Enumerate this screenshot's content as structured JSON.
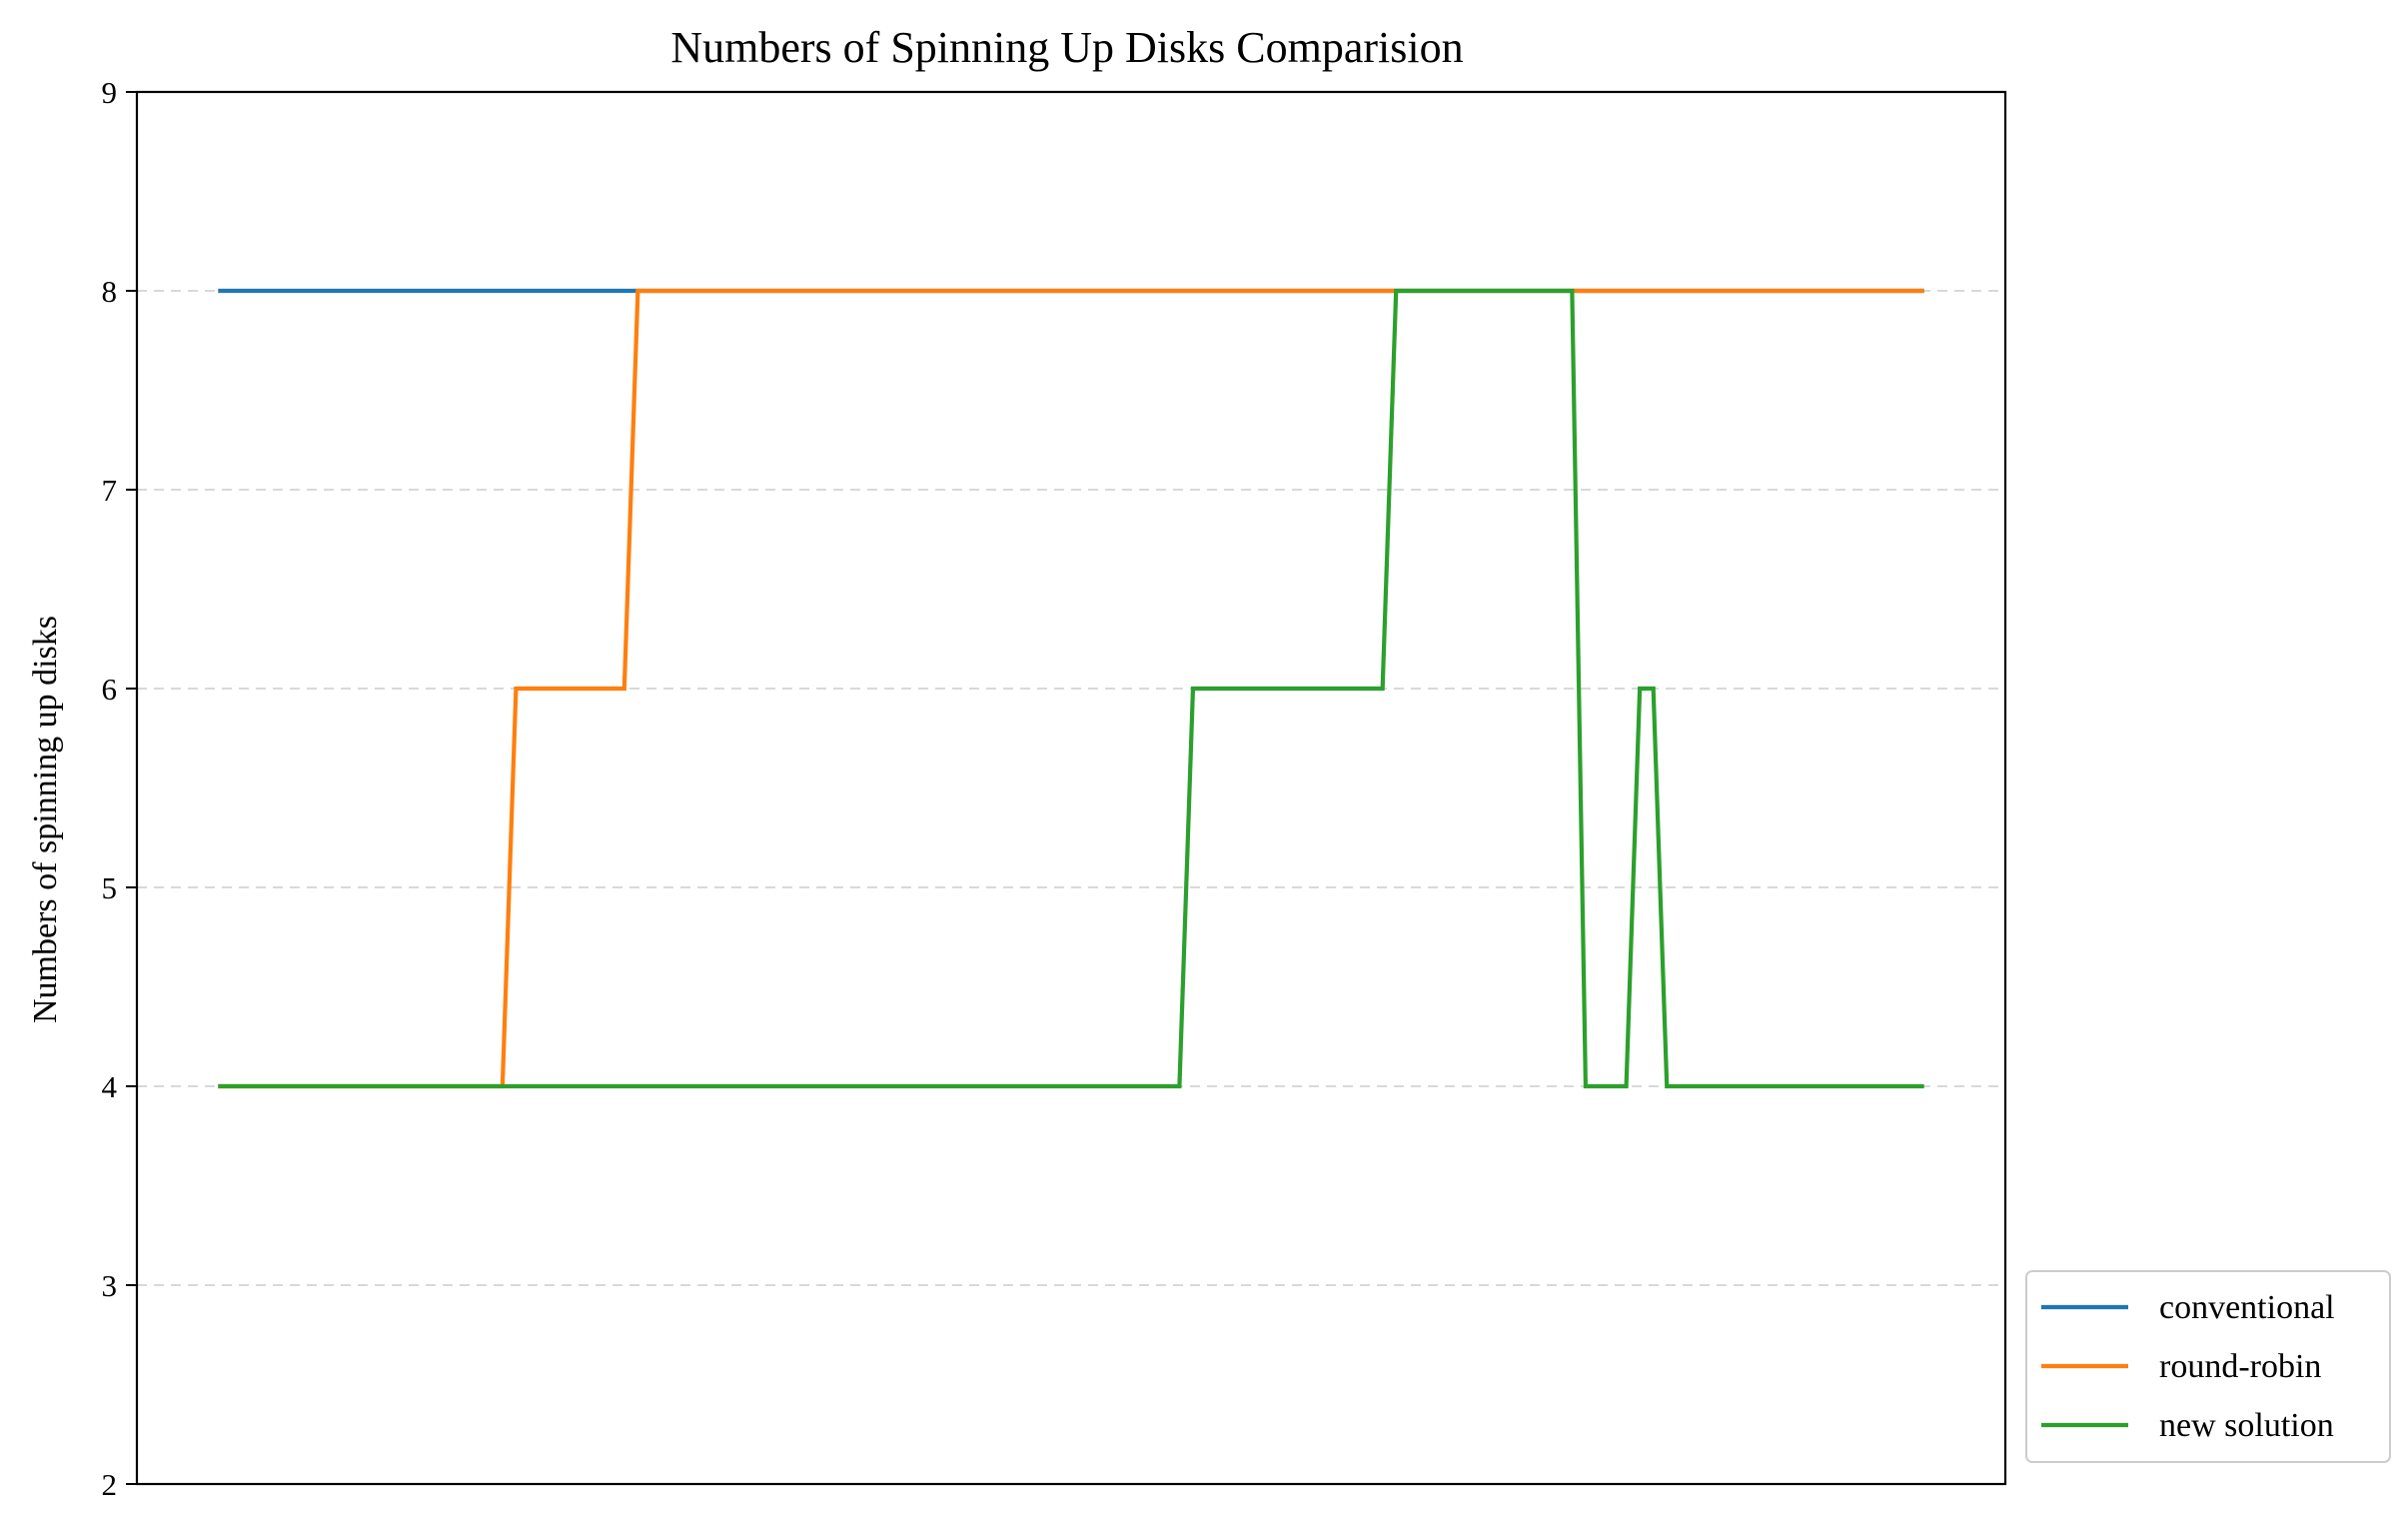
{
  "chart_data": {
    "type": "line",
    "title": "Numbers of Spinning Up Disks Comparision",
    "xlabel": "",
    "ylabel": "Numbers of spinning up disks",
    "xlim": [
      -6,
      132
    ],
    "ylim": [
      2,
      9
    ],
    "yticks": [
      "2",
      "3",
      "4",
      "5",
      "6",
      "7",
      "8",
      "9"
    ],
    "grid": "y-dashed",
    "legend_position": "lower-right-outside",
    "series": [
      {
        "name": "conventional",
        "color": "#1f77b4",
        "x": [
          0,
          126
        ],
        "y": [
          8,
          8
        ]
      },
      {
        "name": "round-robin",
        "color": "#ff7f0e",
        "x": [
          0,
          21,
          22,
          30,
          31,
          126
        ],
        "y": [
          4,
          4,
          6,
          6,
          8,
          8
        ]
      },
      {
        "name": "new solution",
        "color": "#2ca02c",
        "x": [
          0,
          71,
          72,
          86,
          87,
          100,
          101,
          104,
          105,
          106,
          107,
          126
        ],
        "y": [
          4,
          4,
          6,
          6,
          8,
          8,
          4,
          4,
          6,
          6,
          4,
          4
        ]
      }
    ]
  }
}
